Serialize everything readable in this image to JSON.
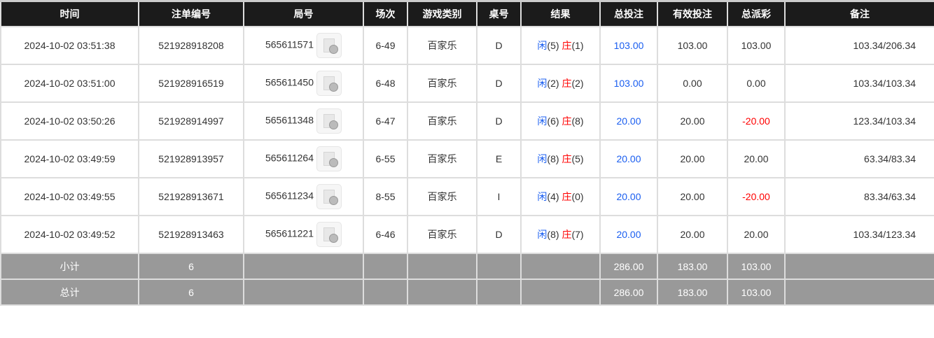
{
  "headers": [
    "时间",
    "注单编号",
    "局号",
    "场次",
    "游戏类别",
    "桌号",
    "结果",
    "总投注",
    "有效投注",
    "总派彩",
    "备注"
  ],
  "rows": [
    {
      "time": "2024-10-02 03:51:38",
      "bet_id": "521928918208",
      "round": "565611571",
      "session": "6-49",
      "game": "百家乐",
      "table": "D",
      "player_label": "闲",
      "player_score": "(5)",
      "banker_label": "庄",
      "banker_score": "(1)",
      "total_bet": "103.00",
      "valid_bet": "103.00",
      "payout": "103.00",
      "payout_negative": false,
      "note": "103.34/206.34"
    },
    {
      "time": "2024-10-02 03:51:00",
      "bet_id": "521928916519",
      "round": "565611450",
      "session": "6-48",
      "game": "百家乐",
      "table": "D",
      "player_label": "闲",
      "player_score": "(2)",
      "banker_label": "庄",
      "banker_score": "(2)",
      "total_bet": "103.00",
      "valid_bet": "0.00",
      "payout": "0.00",
      "payout_negative": false,
      "note": "103.34/103.34"
    },
    {
      "time": "2024-10-02 03:50:26",
      "bet_id": "521928914997",
      "round": "565611348",
      "session": "6-47",
      "game": "百家乐",
      "table": "D",
      "player_label": "闲",
      "player_score": "(6)",
      "banker_label": "庄",
      "banker_score": "(8)",
      "total_bet": "20.00",
      "valid_bet": "20.00",
      "payout": "-20.00",
      "payout_negative": true,
      "note": "123.34/103.34"
    },
    {
      "time": "2024-10-02 03:49:59",
      "bet_id": "521928913957",
      "round": "565611264",
      "session": "6-55",
      "game": "百家乐",
      "table": "E",
      "player_label": "闲",
      "player_score": "(8)",
      "banker_label": "庄",
      "banker_score": "(5)",
      "total_bet": "20.00",
      "valid_bet": "20.00",
      "payout": "20.00",
      "payout_negative": false,
      "note": "63.34/83.34"
    },
    {
      "time": "2024-10-02 03:49:55",
      "bet_id": "521928913671",
      "round": "565611234",
      "session": "8-55",
      "game": "百家乐",
      "table": "I",
      "player_label": "闲",
      "player_score": "(4)",
      "banker_label": "庄",
      "banker_score": "(0)",
      "total_bet": "20.00",
      "valid_bet": "20.00",
      "payout": "-20.00",
      "payout_negative": true,
      "note": "83.34/63.34"
    },
    {
      "time": "2024-10-02 03:49:52",
      "bet_id": "521928913463",
      "round": "565611221",
      "session": "6-46",
      "game": "百家乐",
      "table": "D",
      "player_label": "闲",
      "player_score": "(8)",
      "banker_label": "庄",
      "banker_score": "(7)",
      "total_bet": "20.00",
      "valid_bet": "20.00",
      "payout": "20.00",
      "payout_negative": false,
      "note": "103.34/123.34"
    }
  ],
  "subtotal": {
    "label": "小计",
    "count": "6",
    "total_bet": "286.00",
    "valid_bet": "183.00",
    "payout": "103.00"
  },
  "total": {
    "label": "总计",
    "count": "6",
    "total_bet": "286.00",
    "valid_bet": "183.00",
    "payout": "103.00"
  },
  "colors": {
    "header_bg": "#1b1b1b",
    "footer_bg": "#999999",
    "blue": "#1a5ef0",
    "red": "#ff0000"
  }
}
